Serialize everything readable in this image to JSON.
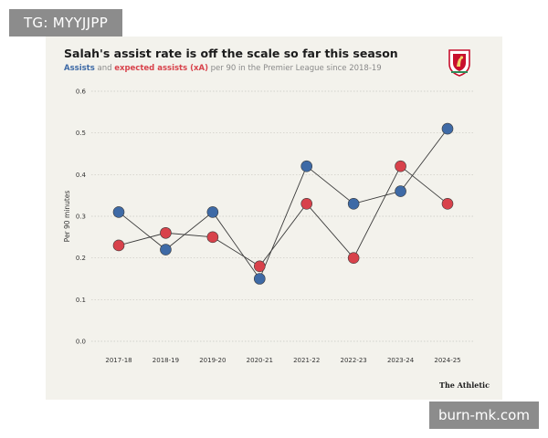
{
  "overlay": {
    "tg_label": "TG: MYYJJPP",
    "watermark": "burn-mk.com"
  },
  "colors": {
    "assists": "#3e6aa6",
    "xa": "#d8424b",
    "card_bg": "#f3f2ec"
  },
  "chart_data": {
    "type": "line",
    "title": "Salah's assist rate is off the scale so far this season",
    "subtitle": {
      "assists_word": "Assists",
      "and_word": " and ",
      "xa_phrase": "expected assists (xA)",
      "rest": " per 90 in the Premier League since 2018-19"
    },
    "xlabel": "",
    "ylabel": "Per 90 minutes",
    "ylim": [
      0,
      0.6
    ],
    "yticks": [
      "0.0",
      "0.1",
      "0.2",
      "0.3",
      "0.4",
      "0.5",
      "0.6"
    ],
    "categories": [
      "2017-18",
      "2018-19",
      "2019-20",
      "2020-21",
      "2021-22",
      "2022-23",
      "2023-24",
      "2024-25"
    ],
    "series": [
      {
        "name": "Assists",
        "color": "#3e6aa6",
        "values": [
          0.31,
          0.22,
          0.31,
          0.15,
          0.42,
          0.33,
          0.36,
          0.51
        ]
      },
      {
        "name": "Expected assists (xA)",
        "color": "#d8424b",
        "values": [
          0.23,
          0.26,
          0.25,
          0.18,
          0.33,
          0.2,
          0.42,
          0.33
        ]
      }
    ],
    "grid": "horizontal-dotted",
    "source": "The Athletic"
  }
}
